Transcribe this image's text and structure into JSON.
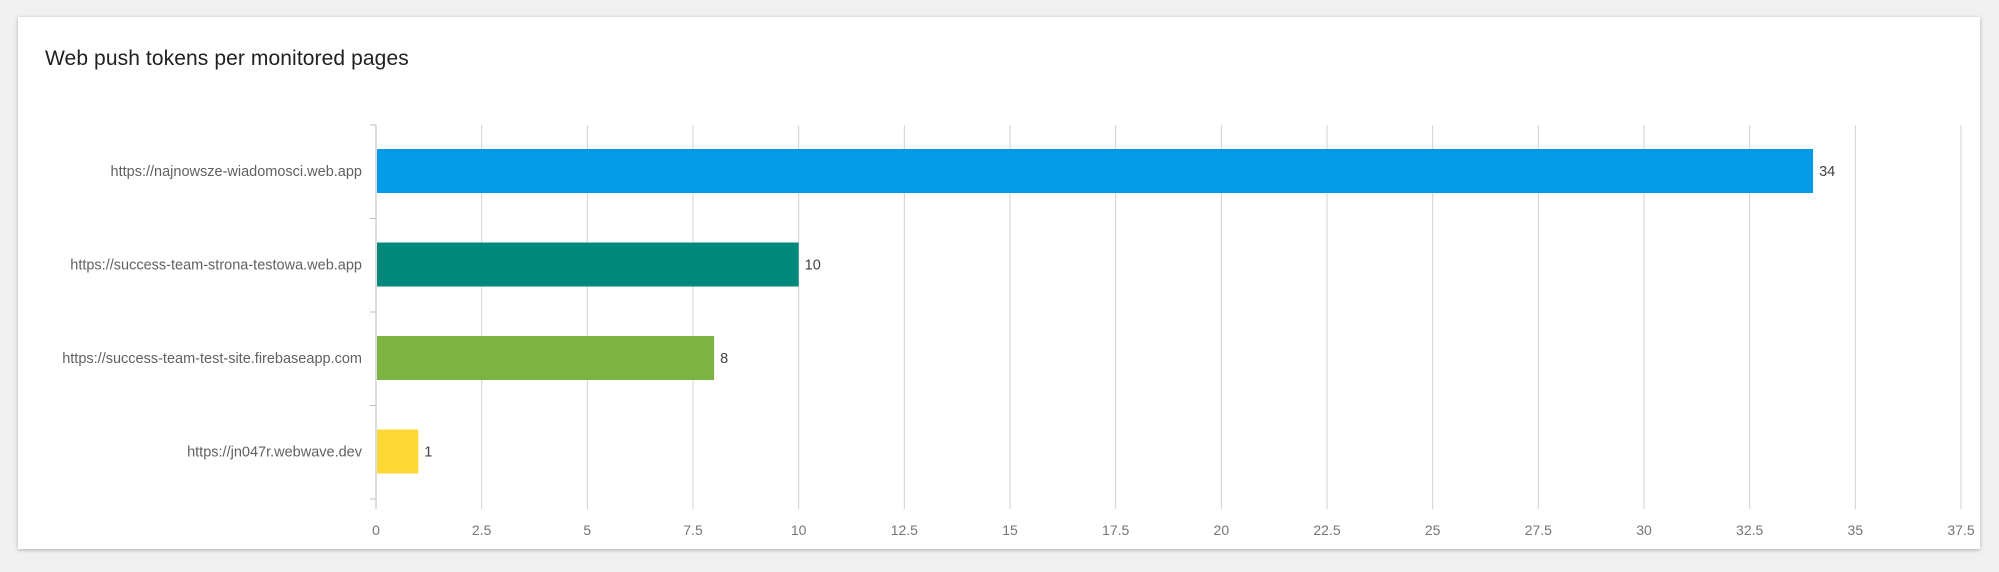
{
  "card": {
    "title": "Web push tokens per monitored pages"
  },
  "chart_data": {
    "type": "bar",
    "orientation": "horizontal",
    "title": "Web push tokens per monitored pages",
    "xlabel": "",
    "ylabel": "",
    "categories": [
      "https://najnowsze-wiadomosci.web.app",
      "https://success-team-strona-testowa.web.app",
      "https://success-team-test-site.firebaseapp.com",
      "https://jn047r.webwave.dev"
    ],
    "values": [
      34,
      10,
      8,
      1
    ],
    "bar_colors": [
      "#039be5",
      "#00897b",
      "#7cb342",
      "#fdd835"
    ],
    "xlim": [
      0,
      37.5
    ],
    "xticks": [
      "0",
      "2.5",
      "5",
      "7.5",
      "10",
      "12.5",
      "15",
      "17.5",
      "20",
      "22.5",
      "25",
      "27.5",
      "30",
      "32.5",
      "35",
      "37.5"
    ],
    "grid": true,
    "legend": "none",
    "data_labels": true
  }
}
